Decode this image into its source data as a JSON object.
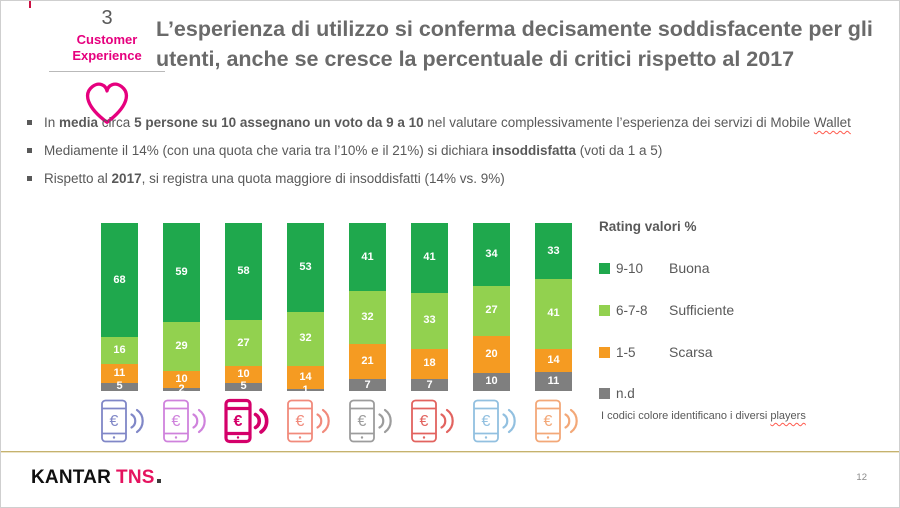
{
  "header": {
    "section_number": "3",
    "section_label_line1": "Customer",
    "section_label_line2": "Experience",
    "title": "L’esperienza di utilizzo si conferma decisamente soddisfacente per gli utenti, anche se cresce la percentuale di critici rispetto al 2017"
  },
  "bullets": [
    {
      "segments": [
        {
          "t": "In "
        },
        {
          "t": "media",
          "b": true
        },
        {
          "t": " circa "
        },
        {
          "t": "5 persone su 10 assegnano un voto da 9 a 10",
          "b": true
        },
        {
          "t": " nel valutare complessivamente l’esperienza dei servizi di Mobile "
        },
        {
          "t": "Wallet",
          "wavy": true
        }
      ]
    },
    {
      "segments": [
        {
          "t": "Mediamente il 14% (con una quota che varia tra l’10% e il 21%) si dichiara "
        },
        {
          "t": "insoddisfatta",
          "b": true
        },
        {
          "t": " (voti da 1 a 5)"
        }
      ]
    },
    {
      "segments": [
        {
          "t": "Rispetto al "
        },
        {
          "t": "2017",
          "b": true
        },
        {
          "t": ", si registra una quota maggiore di insoddisfatti (14% vs. 9%)"
        }
      ]
    }
  ],
  "chart_data": {
    "type": "bar",
    "stacked": true,
    "percent_of_total": true,
    "title": "Rating valori %",
    "legend_position": "right",
    "categories": [
      "phone-periwinkle-icon",
      "phone-orchid-icon",
      "phone-magenta-icon",
      "phone-salmon-icon",
      "phone-gray-icon",
      "phone-red-icon",
      "phone-lightblue-icon",
      "phone-peach-icon"
    ],
    "series": [
      {
        "name": "9-10",
        "label": "Buona",
        "color": "#1fa84d",
        "values": [
          68,
          59,
          58,
          53,
          41,
          41,
          34,
          33
        ]
      },
      {
        "name": "6-7-8",
        "label": "Sufficiente",
        "color": "#92d14f",
        "values": [
          16,
          29,
          27,
          32,
          32,
          33,
          27,
          41
        ]
      },
      {
        "name": "1-5",
        "label": "Scarsa",
        "color": "#f59b22",
        "values": [
          11,
          10,
          10,
          14,
          21,
          18,
          20,
          14
        ]
      },
      {
        "name": "n.d",
        "label": "",
        "color": "#7f7f7f",
        "values": [
          5,
          2,
          5,
          1,
          7,
          7,
          10,
          11
        ]
      }
    ]
  },
  "phones": [
    {
      "name": "phone-periwinkle-icon",
      "color": "#8087c7",
      "bold": false
    },
    {
      "name": "phone-orchid-icon",
      "color": "#cf82dc",
      "bold": false
    },
    {
      "name": "phone-magenta-icon",
      "color": "#d4006a",
      "bold": true
    },
    {
      "name": "phone-salmon-icon",
      "color": "#f18a7b",
      "bold": false
    },
    {
      "name": "phone-gray-icon",
      "color": "#9c9c9c",
      "bold": false
    },
    {
      "name": "phone-red-icon",
      "color": "#e2635f",
      "bold": false
    },
    {
      "name": "phone-lightblue-icon",
      "color": "#92c0e0",
      "bold": false
    },
    {
      "name": "phone-peach-icon",
      "color": "#f3a878",
      "bold": false
    }
  ],
  "color_note": {
    "segments": [
      {
        "t": "I codici colore identificano i diversi "
      },
      {
        "t": "players",
        "wavy": true
      }
    ]
  },
  "footer": {
    "logo_kantar": "KANTAR",
    "logo_tns": "TNS",
    "page_number": "12"
  },
  "colors": {
    "brand_pink": "#e6007e",
    "title_gray": "#6a6a6a",
    "body_gray": "#595959"
  }
}
